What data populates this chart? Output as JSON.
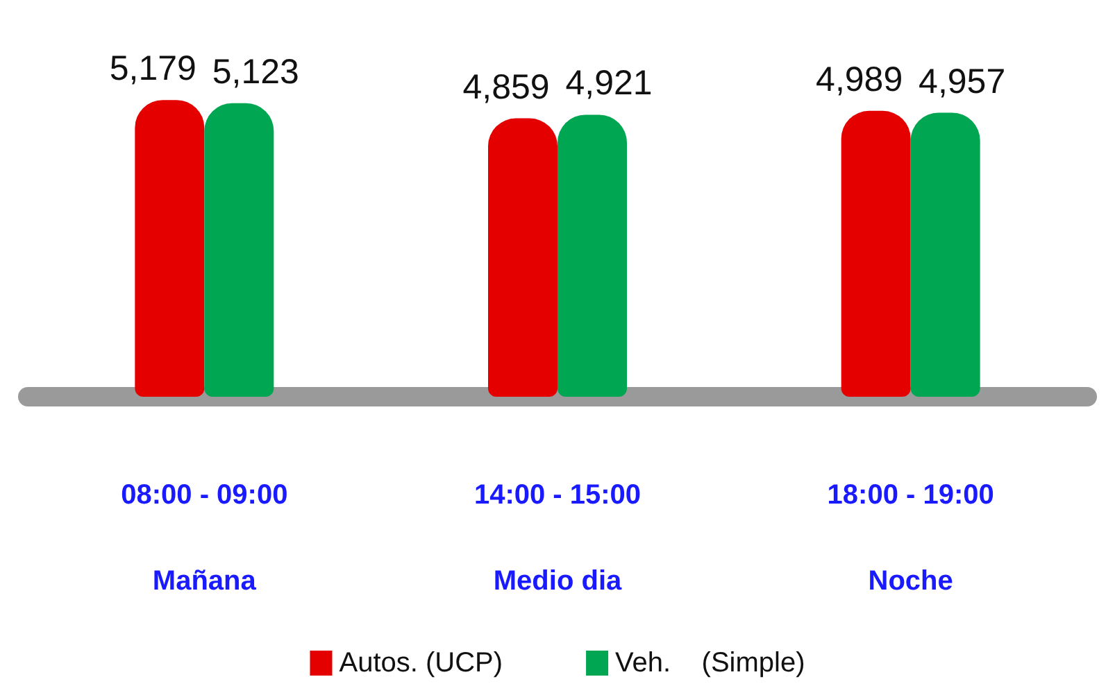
{
  "chart_data": {
    "type": "bar",
    "categories": [
      "08:00 - 09:00\nMañana",
      "14:00 - 15:00\nMedio dia",
      "18:00 - 19:00\nNoche"
    ],
    "series": [
      {
        "name": "Autos. (UCP)",
        "color": "#e50000",
        "values": [
          5179,
          4859,
          4989
        ],
        "value_labels": [
          "5,179",
          "4,859",
          "4,989"
        ]
      },
      {
        "name": "Veh.    (Simple)",
        "color": "#00a651",
        "values": [
          5123,
          4921,
          4957
        ],
        "value_labels": [
          "5,123",
          "4,921",
          "4,957"
        ]
      }
    ],
    "tick_labels": "x",
    "legend": "bottom",
    "grid": false
  }
}
